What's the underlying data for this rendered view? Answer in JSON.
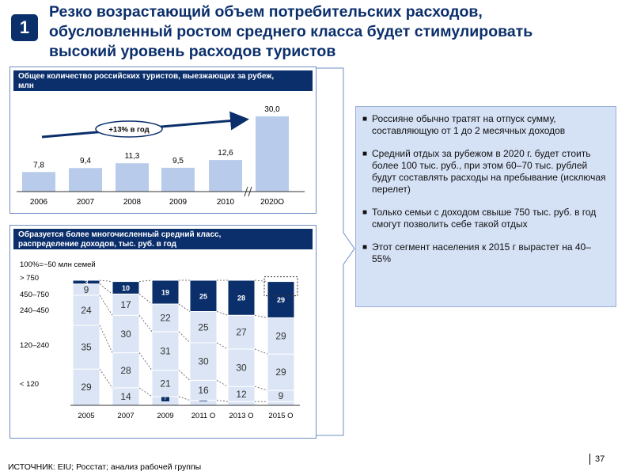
{
  "slide": {
    "badge": "1",
    "title_lines": [
      "Резко возрастающий объем потребительских расходов,",
      "обусловленный ростом среднего класса будет стимулировать",
      "высокий уровень расходов туристов"
    ],
    "source": "ИСТОЧНИК: EIU; Росстат; анализ рабочей группы",
    "page_number": "37"
  },
  "top_panel": {
    "header": [
      "Общее количество российских туристов, выезжающих за рубеж,",
      "млн"
    ],
    "growth_label": "+13% в год"
  },
  "bottom_panel": {
    "header": [
      "Образуется более многочисленный средний класс,",
      "распределение доходов, тыс. руб. в год"
    ],
    "base_note": "100%=~50 млн семей",
    "segment_labels": [
      "> 750",
      "450–750",
      "240–450",
      "120–240",
      "< 120"
    ]
  },
  "bullets": [
    "Россияне обычно тратят на отпуск сумму, составляющую от 1 до 2 месячных доходов",
    "Средний отдых за рубежом в 2020 г. будет стоить более 100 тыс. руб., при этом 60–70 тыс. рублей будут составлять расходы на пребывание (исключая перелет)",
    "Только семьи с доходом свыше 750 тыс. руб. в год смогут позволить себе такой отдых",
    "Этот сегмент населения к 2015 г вырастет на 40–55%"
  ],
  "colors": {
    "navy": "#0b2f6b",
    "bar_light": "#b8cbea",
    "bar_mid": "#dbe5f5",
    "panel_border": "#6f8fc4",
    "right_box": "#d5e1f5"
  },
  "chart_data": [
    {
      "type": "bar",
      "title": "Общее количество российских туристов, выезжающих за рубеж, млн",
      "categories": [
        "2006",
        "2007",
        "2008",
        "2009",
        "2010",
        "2020O"
      ],
      "values": [
        7.8,
        9.4,
        11.3,
        9.5,
        12.6,
        30.0
      ],
      "value_labels": [
        "7,8",
        "9,4",
        "11,3",
        "9,5",
        "12,6",
        "30,0"
      ],
      "axis_break_before": "2020O",
      "annotation": "+13% в год"
    },
    {
      "type": "bar",
      "stacked": true,
      "title": "Образуется более многочисленный средний класс, распределение доходов, тыс. руб. в год",
      "categories": [
        "2005",
        "2007",
        "2009",
        "2011 O",
        "2013 O",
        "2015 O"
      ],
      "series": [
        {
          "name": "< 120",
          "values": [
            29,
            14,
            7,
            4,
            3,
            3
          ]
        },
        {
          "name": "120–240",
          "values": [
            35,
            28,
            21,
            16,
            12,
            9
          ]
        },
        {
          "name": "240–450",
          "values": [
            24,
            30,
            31,
            30,
            30,
            29
          ]
        },
        {
          "name": "450–750",
          "values": [
            9,
            17,
            22,
            25,
            27,
            29
          ]
        },
        {
          "name": "> 750",
          "values": [
            3,
            10,
            19,
            25,
            28,
            29
          ]
        }
      ],
      "note": "100%=~50 млн семей"
    }
  ]
}
